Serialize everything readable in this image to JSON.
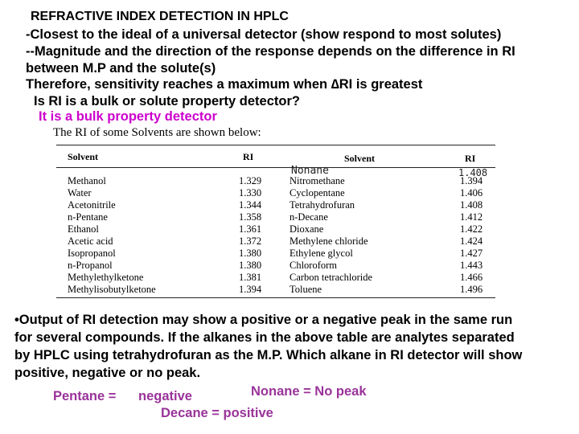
{
  "slide": {
    "title": "REFRACTIVE INDEX DETECTION IN HPLC",
    "lines": [
      "-Closest to the ideal of a universal detector (show respond to most solutes)",
      "--Magnitude and the direction of the response depends on the difference in RI",
      "between M.P and the solute(s)",
      "Therefore, sensitivity reaches a maximum when ",
      "Is RI is a bulk or solute property detector?"
    ],
    "delta_symbol": "∆",
    "delta_suffix": "RI is greatest",
    "answer_bulk": "It is a bulk property detector"
  },
  "table": {
    "caption": "The RI of some Solvents are shown below:",
    "headers": {
      "solvent1": "Solvent",
      "ri1": "RI",
      "solvent2": "Solvent",
      "ri2": "RI"
    },
    "left": {
      "solvents": [
        "Methanol",
        "Water",
        "Acetonitrile",
        "n-Pentane",
        "Ethanol",
        "Acetic acid",
        "Isopropanol",
        "n-Propanol",
        "Methylethylketone",
        "Methylisobutylketone"
      ],
      "ri": [
        "1.329",
        "1.330",
        "1.344",
        "1.358",
        "1.361",
        "1.372",
        "1.380",
        "1.380",
        "1.381",
        "1.394"
      ]
    },
    "right": {
      "solvents": [
        "Nitromethane",
        "Cyclopentane",
        "Tetrahydrofuran",
        "n-Decane",
        "Dioxane",
        "Methylene chloride",
        "Ethylene glycol",
        "Chloroform",
        "Carbon tetrachloride",
        "Toluene"
      ],
      "ri": [
        "1.394",
        "1.406",
        "1.408",
        "1.412",
        "1.422",
        "1.424",
        "1.427",
        "1.443",
        "1.466",
        "1.496"
      ]
    },
    "handwritten_nonane": "Nonane",
    "handwritten_ri": "1.408"
  },
  "bullet": {
    "symbol": "•",
    "lines": [
      "Output of RI detection may show a positive or a negative peak in the same run",
      "for several compounds.  If the alkanes in the above table are analytes separated",
      "by HPLC using tetrahydrofuran as the M.P.  Which alkane in RI detector will show",
      "positive, negative or no peak."
    ]
  },
  "answers": {
    "pentane_label": "Pentane =",
    "pentane_value": "negative",
    "nonane": "Nonane  =  No peak",
    "decane": "Decane  = positive"
  }
}
